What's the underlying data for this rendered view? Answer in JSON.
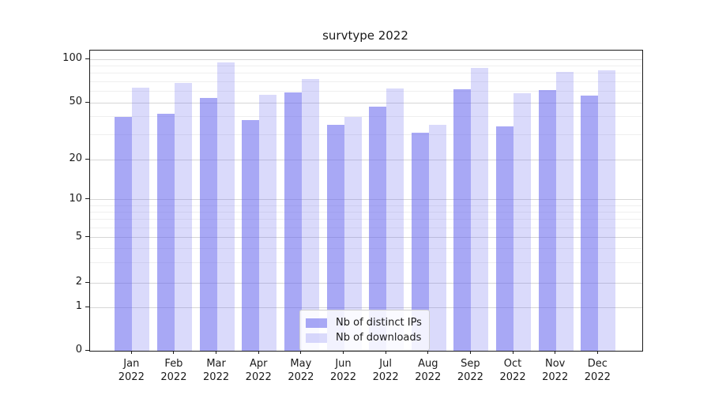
{
  "figure": {
    "background": "#ffffff",
    "title": "survtype 2022"
  },
  "chart_data": {
    "type": "bar",
    "title": "survtype 2022",
    "categories": [
      "Jan",
      "Feb",
      "Mar",
      "Apr",
      "May",
      "Jun",
      "Jul",
      "Aug",
      "Sep",
      "Oct",
      "Nov",
      "Dec"
    ],
    "category_year": "2022",
    "series": [
      {
        "name": "Nb of distinct IPs",
        "color": "rgba(102,102,238,0.57)",
        "values": [
          40,
          42,
          54,
          38,
          59,
          35,
          47,
          31,
          62,
          34,
          61,
          56
        ]
      },
      {
        "name": "Nb of downloads",
        "color": "rgba(102,102,238,0.24)",
        "values": [
          64,
          69,
          95,
          57,
          73,
          40,
          63,
          35,
          87,
          58,
          82,
          84
        ]
      }
    ],
    "xlabel": "",
    "ylabel": "",
    "y_axis": {
      "scale": "symlog-like (log axis including 0)",
      "ticks": [
        100,
        50,
        20,
        10,
        5,
        2,
        1,
        0
      ],
      "minor_gridlines": [
        90,
        80,
        70,
        60,
        40,
        30,
        9,
        8,
        7,
        6,
        4,
        3
      ],
      "ylim": [
        0,
        115
      ]
    },
    "grid": true,
    "legend_position": "lower center"
  }
}
